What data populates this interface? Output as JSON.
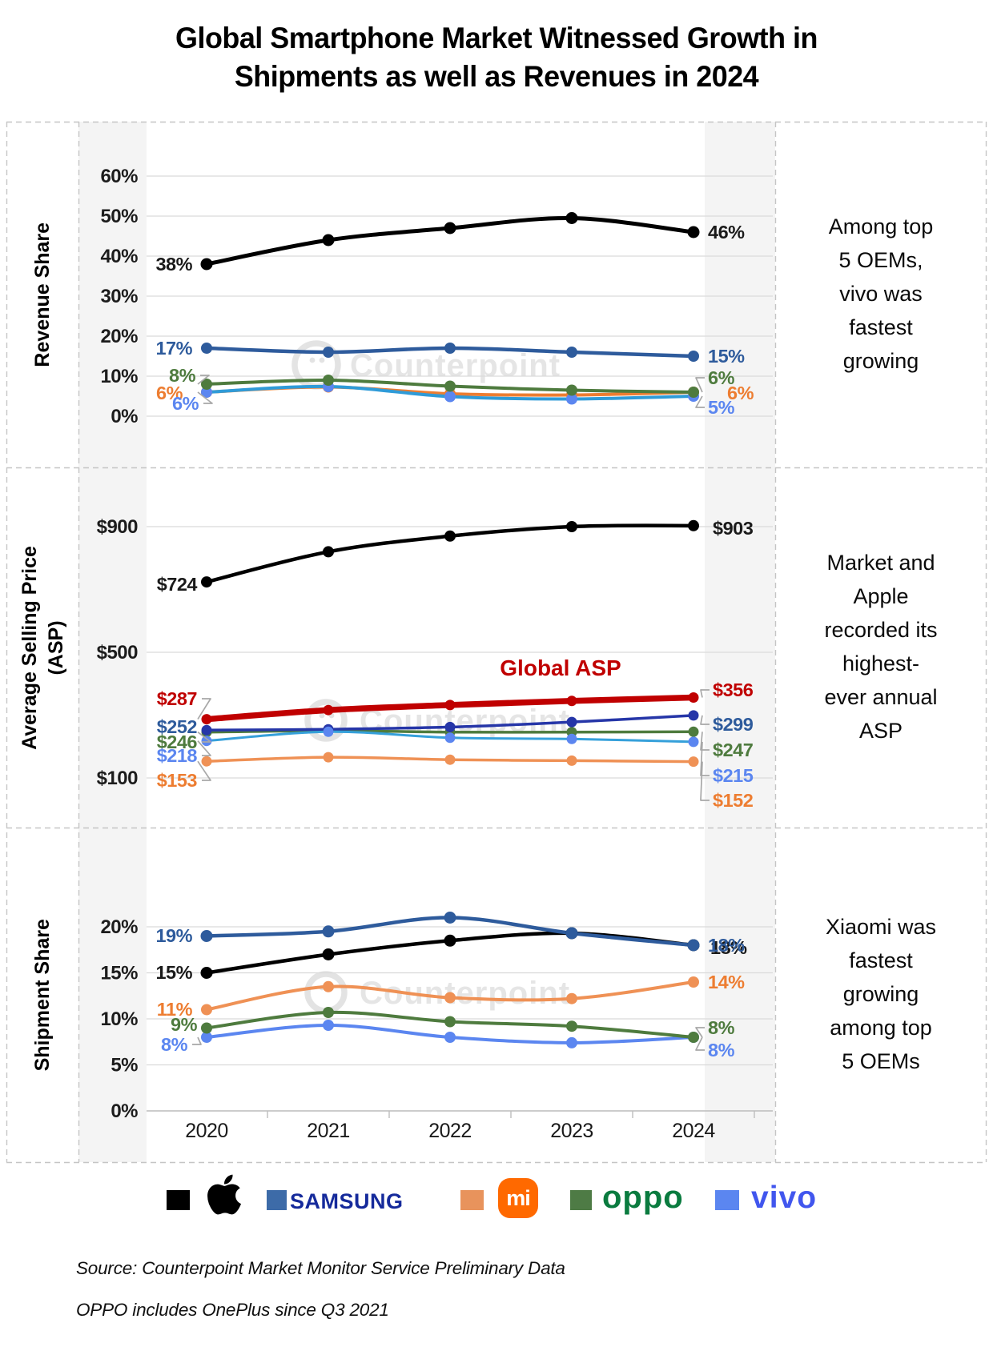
{
  "title_lines": [
    "Global Smartphone Market Witnessed Growth in",
    "Shipments as well as Revenues in 2024"
  ],
  "watermark_text": "Counterpoint",
  "years": [
    "2020",
    "2021",
    "2022",
    "2023",
    "2024"
  ],
  "sections": [
    {
      "axis_title_lines": [
        "Revenue Share"
      ],
      "annotation_lines": [
        "Among top",
        "5 OEMs,",
        "vivo was",
        "fastest",
        "growing"
      ]
    },
    {
      "axis_title_lines": [
        "Average Selling Price",
        "(ASP)"
      ],
      "annotation_lines": [
        "Market and",
        "Apple",
        "recorded its",
        "highest-",
        "ever annual",
        "ASP"
      ]
    },
    {
      "axis_title_lines": [
        "Shipment Share"
      ],
      "annotation_lines": [
        "Xiaomi was",
        "fastest",
        "growing",
        "among top",
        "5 OEMs"
      ]
    }
  ],
  "chart_data": [
    {
      "type": "line",
      "title": "Revenue Share",
      "categories": [
        "2020",
        "2021",
        "2022",
        "2023",
        "2024"
      ],
      "ylabel": "Revenue Share",
      "ylim": [
        0,
        60
      ],
      "unit": "%",
      "y_ticks": [
        {
          "v": 0,
          "t": "0%"
        },
        {
          "v": 10,
          "t": "10%"
        },
        {
          "v": 20,
          "t": "20%"
        },
        {
          "v": 30,
          "t": "30%"
        },
        {
          "v": 40,
          "t": "40%"
        },
        {
          "v": 50,
          "t": "50%"
        },
        {
          "v": 60,
          "t": "60%"
        }
      ],
      "series": [
        {
          "name": "Xiaomi",
          "color": "#ed7d31",
          "dot_color": "#ed7d31",
          "width": 4,
          "r": 7,
          "values": [
            6,
            7.3,
            5.6,
            5.3,
            6
          ],
          "left_label": "6%",
          "right_label": "6%",
          "label_color": "#ed7d31"
        },
        {
          "name": "vivo",
          "color": "#2f9bd8",
          "dot_color": "#5b86f0",
          "width": 4,
          "r": 7,
          "values": [
            6,
            7.4,
            4.9,
            4.3,
            5
          ],
          "left_label": "6%",
          "right_label": "5%",
          "label_color": "#5b86f0"
        },
        {
          "name": "OPPO",
          "color": "#4e7b3e",
          "dot_color": "#4e7b3e",
          "width": 4,
          "r": 7,
          "values": [
            8,
            9,
            7.5,
            6.5,
            6
          ],
          "left_label": "8%",
          "right_label": "6%",
          "label_color": "#4e7b3e"
        },
        {
          "name": "Samsung",
          "color": "#2e5b9c",
          "dot_color": "#2e5b9c",
          "width": 4.5,
          "r": 7,
          "values": [
            17,
            16,
            17,
            16,
            15
          ],
          "left_label": "17%",
          "right_label": "15%",
          "label_color": "#2e5b9c"
        },
        {
          "name": "Apple",
          "color": "#000000",
          "dot_color": "#000000",
          "width": 5,
          "r": 7.5,
          "values": [
            38,
            44,
            47,
            49.5,
            46
          ],
          "left_label": "38%",
          "right_label": "46%",
          "label_color": "#1a1a1a"
        }
      ]
    },
    {
      "type": "line",
      "title": "Average Selling Price (ASP)",
      "categories": [
        "2020",
        "2021",
        "2022",
        "2023",
        "2024"
      ],
      "ylabel": "Average Selling Price (ASP)",
      "ylim": [
        100,
        950
      ],
      "unit": "$",
      "y_ticks": [
        {
          "v": 100,
          "t": "$100"
        },
        {
          "v": 500,
          "t": "$500"
        },
        {
          "v": 900,
          "t": "$900"
        }
      ],
      "series": [
        {
          "name": "Xiaomi",
          "color": "#ef9155",
          "dot_color": "#ef9155",
          "width": 3.5,
          "r": 6.5,
          "values": [
            153,
            166,
            158,
            155,
            152
          ],
          "left_label": "$153",
          "right_label": "$152",
          "label_color": "#ed7d31"
        },
        {
          "name": "OPPO",
          "color": "#4e7b3e",
          "dot_color": "#4e7b3e",
          "width": 3.5,
          "r": 6.5,
          "values": [
            246,
            250,
            246,
            246,
            247
          ],
          "left_label": "$246",
          "right_label": "$247",
          "label_color": "#4e7b3e"
        },
        {
          "name": "Samsung",
          "color": "#2636a8",
          "dot_color": "#2636a8",
          "width": 3.5,
          "r": 6.5,
          "values": [
            252,
            255,
            262,
            278,
            299
          ],
          "left_label": "$252",
          "right_label": "$299",
          "label_color": "#2e5b9c"
        },
        {
          "name": "vivo",
          "color": "#35a0da",
          "dot_color": "#5b86f0",
          "width": 3,
          "r": 6.5,
          "values": [
            218,
            247,
            228,
            224,
            215
          ],
          "left_label": "$218",
          "right_label": "$215",
          "label_color": "#5b86f0"
        },
        {
          "name": "Global ASP",
          "color": "#c00000",
          "dot_color": "#c00000",
          "width": 7.5,
          "r": 6.5,
          "values": [
            287,
            316,
            332,
            345,
            356
          ],
          "left_label": "$287",
          "right_label": "$356",
          "label_color": "#c00000",
          "line_label": "Global ASP"
        },
        {
          "name": "Apple",
          "color": "#000000",
          "dot_color": "#000000",
          "width": 4.5,
          "r": 7,
          "values": [
            724,
            820,
            870,
            900,
            903
          ],
          "left_label": "$724",
          "right_label": "$903",
          "label_color": "#1a1a1a"
        }
      ]
    },
    {
      "type": "line",
      "title": "Shipment Share",
      "categories": [
        "2020",
        "2021",
        "2022",
        "2023",
        "2024"
      ],
      "ylabel": "Shipment Share",
      "ylim": [
        0,
        22
      ],
      "unit": "%",
      "y_ticks": [
        {
          "v": 0,
          "t": "0%"
        },
        {
          "v": 5,
          "t": "5%"
        },
        {
          "v": 10,
          "t": "10%"
        },
        {
          "v": 15,
          "t": "15%"
        },
        {
          "v": 20,
          "t": "20%"
        }
      ],
      "series": [
        {
          "name": "vivo",
          "color": "#5b86f0",
          "dot_color": "#5b86f0",
          "width": 4,
          "r": 7,
          "values": [
            8,
            9.3,
            8,
            7.4,
            8
          ],
          "left_label": "8%",
          "right_label": "8%",
          "label_color": "#5b86f0"
        },
        {
          "name": "OPPO",
          "color": "#4e7b3e",
          "dot_color": "#4e7b3e",
          "width": 4,
          "r": 7,
          "values": [
            9,
            10.7,
            9.7,
            9.2,
            8
          ],
          "left_label": "9%",
          "right_label": "8%",
          "label_color": "#4e7b3e"
        },
        {
          "name": "Xiaomi",
          "color": "#ef9155",
          "dot_color": "#ef9155",
          "width": 4,
          "r": 7,
          "values": [
            11,
            13.5,
            12.3,
            12.2,
            14
          ],
          "left_label": "11%",
          "right_label": "14%",
          "label_color": "#ed7d31"
        },
        {
          "name": "Apple",
          "color": "#000000",
          "dot_color": "#000000",
          "width": 4.5,
          "r": 7.5,
          "values": [
            15,
            17,
            18.5,
            19.3,
            18
          ],
          "left_label": "15%",
          "right_label": "18%",
          "label_color": "#1a1a1a"
        },
        {
          "name": "Samsung",
          "color": "#2e5b9c",
          "dot_color": "#2e5b9c",
          "width": 4.5,
          "r": 7.5,
          "values": [
            19,
            19.5,
            21,
            19.3,
            18
          ],
          "left_label": "19%",
          "right_label": "18%",
          "label_color": "#2e5b9c"
        }
      ]
    }
  ],
  "legend": {
    "items": [
      {
        "name": "Apple",
        "swatch": "#000000",
        "logo": "apple"
      },
      {
        "name": "Samsung",
        "swatch": "#3d6ba8",
        "wordmark": "SAMSUNG",
        "wordmark_color": "#152a9b"
      },
      {
        "name": "Xiaomi",
        "swatch": "#e8935c",
        "logo": "mi",
        "mi_text": "mi",
        "mi_bg": "#ff6900"
      },
      {
        "name": "OPPO",
        "swatch": "#4e7b45",
        "wordmark": "oppo",
        "wordmark_color": "#0a7b3f"
      },
      {
        "name": "vivo",
        "swatch": "#5b86f0",
        "wordmark": "vivo",
        "wordmark_color": "#4156ee"
      }
    ]
  },
  "source_lines": [
    "Source: Counterpoint Market Monitor Service Preliminary Data",
    "OPPO includes OnePlus since Q3 2021"
  ]
}
